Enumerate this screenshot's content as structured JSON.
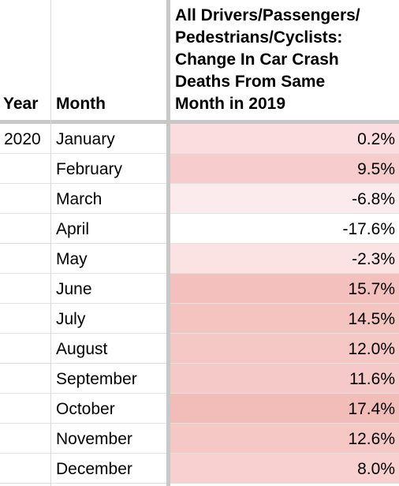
{
  "headers": {
    "year": "Year",
    "month": "Month",
    "change": [
      "All Drivers/Passengers/",
      "Pedestrians/Cyclists:",
      "Change In Car Crash",
      "Deaths From Same",
      "Month in 2019"
    ]
  },
  "rows": [
    {
      "year": "2020",
      "month": "January",
      "change": "0.2%",
      "fill": "#fbdde0"
    },
    {
      "year": "",
      "month": "February",
      "change": "9.5%",
      "fill": "#f6cccc"
    },
    {
      "year": "",
      "month": "March",
      "change": "-6.8%",
      "fill": "#fcebec"
    },
    {
      "year": "",
      "month": "April",
      "change": "-17.6%",
      "fill": "#ffffff"
    },
    {
      "year": "",
      "month": "May",
      "change": "-2.3%",
      "fill": "#fbe2e3"
    },
    {
      "year": "",
      "month": "June",
      "change": "15.7%",
      "fill": "#f3c0bd"
    },
    {
      "year": "",
      "month": "July",
      "change": "14.5%",
      "fill": "#f4c4c1"
    },
    {
      "year": "",
      "month": "August",
      "change": "12.0%",
      "fill": "#f5c8c6"
    },
    {
      "year": "",
      "month": "September",
      "change": "11.6%",
      "fill": "#f5c9c7"
    },
    {
      "year": "",
      "month": "October",
      "change": "17.4%",
      "fill": "#f2bdb9"
    },
    {
      "year": "",
      "month": "November",
      "change": "12.6%",
      "fill": "#f5c7c5"
    },
    {
      "year": "",
      "month": "December",
      "change": "8.0%",
      "fill": "#f7d0cf"
    }
  ]
}
